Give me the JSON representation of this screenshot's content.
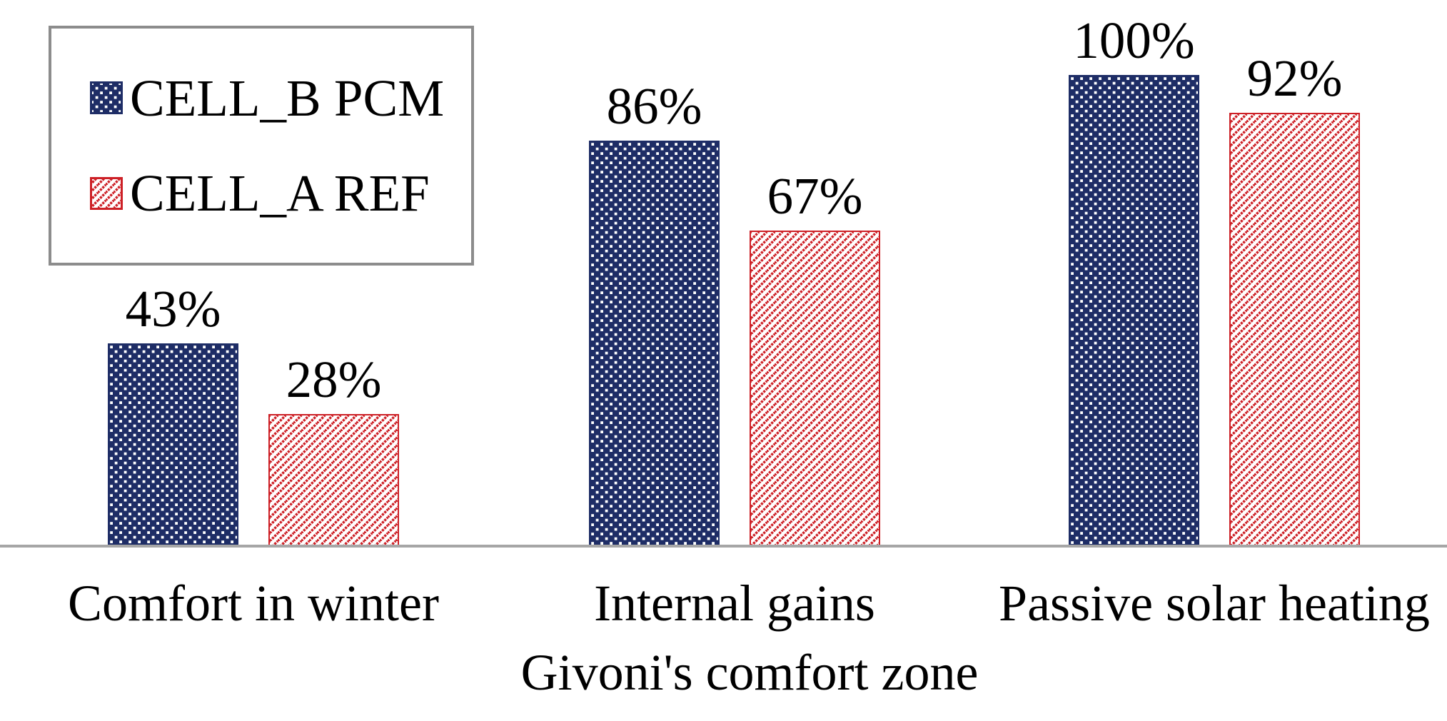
{
  "chart_data": {
    "type": "bar",
    "categories": [
      "Comfort in winter",
      "Internal gains",
      "Passive solar heating"
    ],
    "series": [
      {
        "name": "CELL_B PCM",
        "values": [
          43,
          86,
          100
        ],
        "pattern": "white-square-dots-on-navy",
        "color": "#1e2d66"
      },
      {
        "name": "CELL_A REF",
        "values": [
          28,
          67,
          92
        ],
        "pattern": "red-dashed-diagonal-hatch-on-white",
        "color": "#cd2026"
      }
    ],
    "value_labels": [
      [
        "43%",
        "86%",
        "100%"
      ],
      [
        "28%",
        "67%",
        "92%"
      ]
    ],
    "title": "",
    "xlabel": "Givoni's comfort zone",
    "ylabel": "",
    "ylim": [
      0,
      100
    ],
    "grid": false,
    "legend_position": "top-left",
    "axis_line_color": "#a6a6a6",
    "text_color": "#000000",
    "background_color": "#ffffff"
  },
  "legend": {
    "items": [
      {
        "label": "CELL_B PCM",
        "swatch": "navy-dotted-square"
      },
      {
        "label": "CELL_A REF",
        "swatch": "red-hatched-square"
      }
    ]
  }
}
